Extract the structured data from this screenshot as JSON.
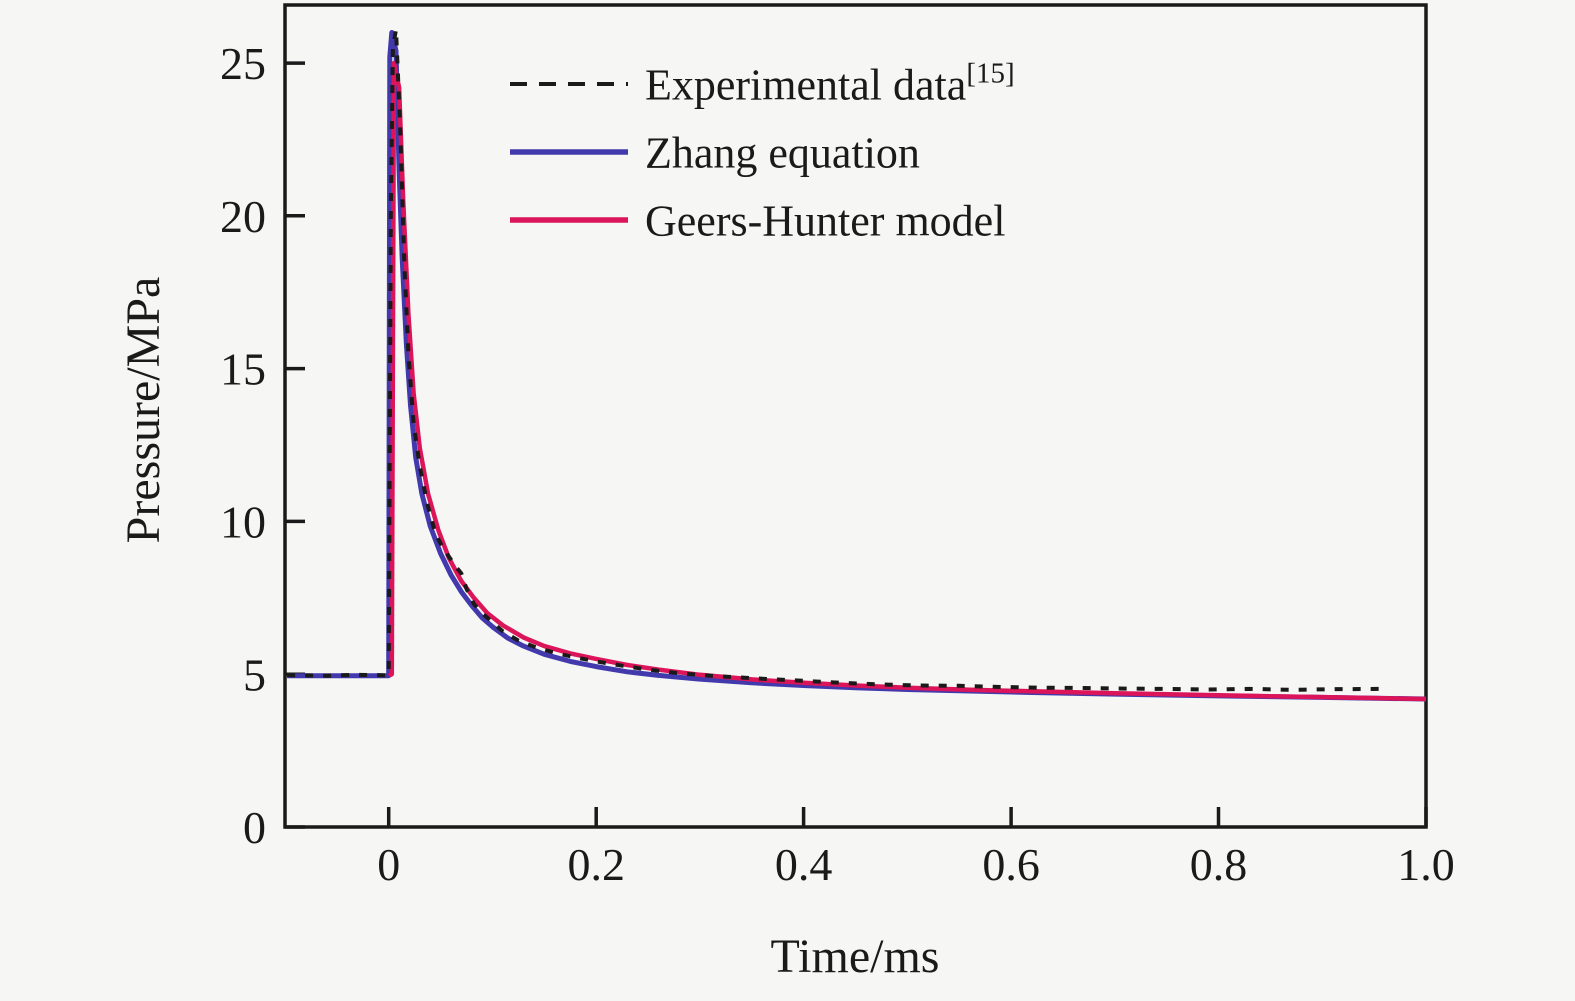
{
  "chart_data": {
    "type": "line",
    "title": "",
    "xlabel": "Time/ms",
    "ylabel": "Pressure/MPa",
    "xlim": [
      -0.1,
      1.0
    ],
    "ylim": [
      0,
      26.9
    ],
    "grid": false,
    "background": "#f6f6f4",
    "axis_color": "#1a1a1a",
    "x_ticks": {
      "values": [
        0,
        0.2,
        0.4,
        0.6,
        0.8,
        1.0
      ],
      "labels": [
        "0",
        "0.2",
        "0.4",
        "0.6",
        "0.8",
        "1.0"
      ]
    },
    "y_ticks": {
      "values": [
        0,
        5,
        10,
        15,
        20,
        25
      ],
      "labels": [
        "0",
        "5",
        "10",
        "15",
        "20",
        "25"
      ]
    },
    "legend": {
      "position": "top-left-inside",
      "entries": [
        "Experimental data[15]",
        "Zhang equation",
        "Geers-Hunter model"
      ]
    },
    "series": [
      {
        "name": "Experimental data",
        "sup": "[15]",
        "slug": "experimental-data",
        "style": "dashed",
        "color": "#1a1a1a",
        "width": 4,
        "z": 3,
        "points": [
          [
            -0.098,
            4.97
          ],
          [
            -0.06,
            4.95
          ],
          [
            -0.03,
            4.98
          ],
          [
            0,
            4.96
          ],
          [
            0.002,
            20.0
          ],
          [
            0.004,
            25.5
          ],
          [
            0.007,
            26.1
          ],
          [
            0.011,
            23.0
          ],
          [
            0.015,
            18.5
          ],
          [
            0.019,
            15.5
          ],
          [
            0.024,
            13.2
          ],
          [
            0.03,
            11.8
          ],
          [
            0.037,
            10.6
          ],
          [
            0.045,
            9.6
          ],
          [
            0.052,
            9.15
          ],
          [
            0.058,
            8.85
          ],
          [
            0.064,
            8.55
          ],
          [
            0.07,
            8.3
          ],
          [
            0.075,
            7.8
          ],
          [
            0.082,
            7.3
          ],
          [
            0.09,
            7.0
          ],
          [
            0.1,
            6.7
          ],
          [
            0.11,
            6.4
          ],
          [
            0.125,
            6.1
          ],
          [
            0.14,
            5.9
          ],
          [
            0.16,
            5.7
          ],
          [
            0.18,
            5.55
          ],
          [
            0.2,
            5.42
          ],
          [
            0.225,
            5.28
          ],
          [
            0.25,
            5.15
          ],
          [
            0.28,
            5.03
          ],
          [
            0.31,
            4.95
          ],
          [
            0.35,
            4.87
          ],
          [
            0.39,
            4.8
          ],
          [
            0.43,
            4.73
          ],
          [
            0.47,
            4.67
          ],
          [
            0.51,
            4.63
          ],
          [
            0.55,
            4.62
          ],
          [
            0.59,
            4.58
          ],
          [
            0.63,
            4.56
          ],
          [
            0.67,
            4.55
          ],
          [
            0.71,
            4.53
          ],
          [
            0.75,
            4.52
          ],
          [
            0.79,
            4.5
          ],
          [
            0.83,
            4.52
          ],
          [
            0.87,
            4.49
          ],
          [
            0.91,
            4.51
          ],
          [
            0.957,
            4.52
          ]
        ]
      },
      {
        "name": "Zhang equation",
        "sup": "",
        "slug": "zhang-equation",
        "style": "solid",
        "color": "#4239ad",
        "width": 5,
        "z": 1,
        "points": [
          [
            -0.098,
            4.95
          ],
          [
            -0.05,
            4.95
          ],
          [
            0,
            4.95
          ],
          [
            0.001,
            25.2
          ],
          [
            0.003,
            26.0
          ],
          [
            0.007,
            25.4
          ],
          [
            0.01,
            21.5
          ],
          [
            0.013,
            18.6
          ],
          [
            0.017,
            15.8
          ],
          [
            0.021,
            13.8
          ],
          [
            0.026,
            12.1
          ],
          [
            0.032,
            10.9
          ],
          [
            0.04,
            9.85
          ],
          [
            0.05,
            8.95
          ],
          [
            0.06,
            8.25
          ],
          [
            0.07,
            7.7
          ],
          [
            0.08,
            7.25
          ],
          [
            0.09,
            6.85
          ],
          [
            0.1,
            6.55
          ],
          [
            0.115,
            6.18
          ],
          [
            0.13,
            5.92
          ],
          [
            0.15,
            5.65
          ],
          [
            0.175,
            5.42
          ],
          [
            0.2,
            5.25
          ],
          [
            0.23,
            5.08
          ],
          [
            0.26,
            4.96
          ],
          [
            0.3,
            4.84
          ],
          [
            0.35,
            4.72
          ],
          [
            0.4,
            4.63
          ],
          [
            0.45,
            4.56
          ],
          [
            0.5,
            4.5
          ],
          [
            0.56,
            4.45
          ],
          [
            0.62,
            4.4
          ],
          [
            0.7,
            4.35
          ],
          [
            0.8,
            4.29
          ],
          [
            0.9,
            4.24
          ],
          [
            1.0,
            4.19
          ]
        ]
      },
      {
        "name": "Geers-Hunter model",
        "sup": "",
        "slug": "geers-hunter-model",
        "style": "solid",
        "color": "#dc1459",
        "width": 4.5,
        "z": 2,
        "points": [
          [
            0,
            4.95
          ],
          [
            0.003,
            5.0
          ],
          [
            0.005,
            25.0
          ],
          [
            0.01,
            24.2
          ],
          [
            0.014,
            20.5
          ],
          [
            0.019,
            16.8
          ],
          [
            0.024,
            14.2
          ],
          [
            0.03,
            12.4
          ],
          [
            0.038,
            10.9
          ],
          [
            0.048,
            9.7
          ],
          [
            0.058,
            8.8
          ],
          [
            0.07,
            8.05
          ],
          [
            0.082,
            7.5
          ],
          [
            0.095,
            7.0
          ],
          [
            0.11,
            6.6
          ],
          [
            0.13,
            6.2
          ],
          [
            0.15,
            5.92
          ],
          [
            0.175,
            5.68
          ],
          [
            0.2,
            5.5
          ],
          [
            0.23,
            5.3
          ],
          [
            0.26,
            5.15
          ],
          [
            0.3,
            4.98
          ],
          [
            0.35,
            4.83
          ],
          [
            0.4,
            4.72
          ],
          [
            0.45,
            4.63
          ],
          [
            0.5,
            4.56
          ],
          [
            0.56,
            4.49
          ],
          [
            0.62,
            4.44
          ],
          [
            0.7,
            4.38
          ],
          [
            0.8,
            4.31
          ],
          [
            0.9,
            4.25
          ],
          [
            1.0,
            4.19
          ]
        ]
      }
    ]
  }
}
